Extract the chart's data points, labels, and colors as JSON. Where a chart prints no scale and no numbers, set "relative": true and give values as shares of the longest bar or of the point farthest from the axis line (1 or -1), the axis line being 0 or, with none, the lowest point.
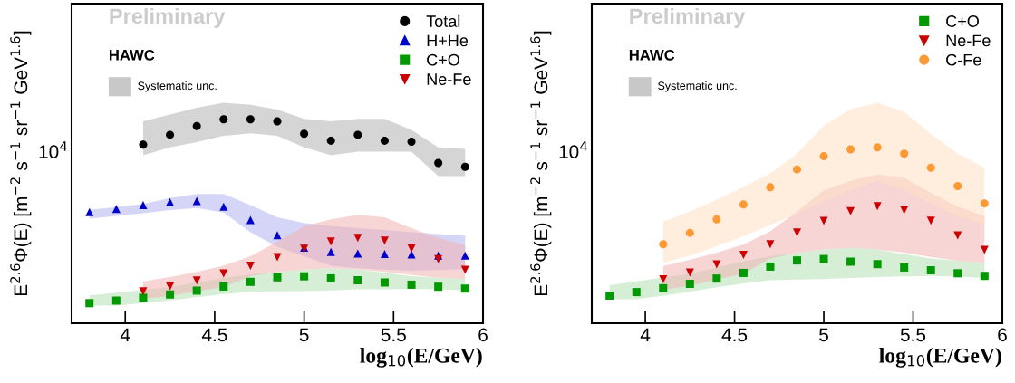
{
  "chart_data": [
    {
      "type": "scatter",
      "relative": true,
      "xlabel": "log$_{10}$(E/GeV)",
      "ylabel": "E$^{2.6}$Φ(E) [m$^{−2}$ s$^{−1}$ sr$^{−1}$ GeV$^{1.6}$]",
      "xlim": [
        3.7,
        6
      ],
      "xticks": [
        4,
        4.5,
        5,
        5.5,
        6
      ],
      "legend": "top right",
      "grid": false,
      "annotations": [
        "Preliminary",
        "HAWC",
        "Systematic unc.",
        "10$^{4}$"
      ],
      "series": [
        {
          "name": "Total",
          "color": "#000000",
          "marker": "circle",
          "x": [
            4.1,
            4.25,
            4.4,
            4.55,
            4.7,
            4.85,
            5.0,
            5.15,
            5.3,
            5.45,
            5.6,
            5.75,
            5.9
          ],
          "values": [
            0.876,
            0.924,
            0.967,
            1,
            1,
            0.99,
            0.929,
            0.895,
            0.924,
            0.895,
            0.89,
            0.786,
            0.767
          ],
          "lower": [
            0.824,
            0.862,
            0.888,
            0.919,
            0.931,
            0.919,
            0.862,
            0.824,
            0.842,
            0.842,
            0.842,
            0.722,
            0.722
          ],
          "upper": [
            0.99,
            1.024,
            1.057,
            1.081,
            1.071,
            1.048,
            1.002,
            0.99,
            1.002,
            1.002,
            0.948,
            0.862,
            0.855
          ]
        },
        {
          "name": "H+He",
          "color": "#0000cc",
          "marker": "triangle",
          "x": [
            3.8,
            3.95,
            4.1,
            4.25,
            4.4,
            4.55,
            4.7,
            4.85,
            5.0,
            5.15,
            5.3,
            5.45,
            5.6,
            5.75,
            5.9
          ],
          "values": [
            0.545,
            0.561,
            0.58,
            0.594,
            0.599,
            0.572,
            0.506,
            0.432,
            0.371,
            0.35,
            0.342,
            0.34,
            0.337,
            0.332,
            0.332
          ],
          "lower": [
            0.513,
            0.526,
            0.539,
            0.555,
            0.565,
            0.543,
            0.446,
            0.375,
            0.329,
            0.282,
            0.27,
            0.263,
            0.258,
            0.261,
            0.267
          ],
          "upper": [
            0.556,
            0.569,
            0.585,
            0.614,
            0.634,
            0.634,
            0.58,
            0.52,
            0.492,
            0.476,
            0.466,
            0.457,
            0.446,
            0.437,
            0.43
          ]
        },
        {
          "name": "C+O",
          "color": "#009900",
          "marker": "square",
          "x": [
            3.8,
            3.95,
            4.1,
            4.25,
            4.4,
            4.55,
            4.7,
            4.85,
            5.0,
            5.15,
            5.3,
            5.45,
            5.6,
            5.75,
            5.9
          ],
          "values": [
            0.0986,
            0.111,
            0.125,
            0.141,
            0.16,
            0.18,
            0.203,
            0.225,
            0.23,
            0.22,
            0.211,
            0.2,
            0.189,
            0.179,
            0.17
          ],
          "lower": [
            0.0862,
            0.0862,
            0.0986,
            0.112,
            0.128,
            0.143,
            0.154,
            0.156,
            0.158,
            0.161,
            0.166,
            0.167,
            0.169,
            0.167,
            0.161
          ],
          "upper": [
            0.136,
            0.15,
            0.163,
            0.178,
            0.199,
            0.222,
            0.24,
            0.252,
            0.264,
            0.27,
            0.264,
            0.247,
            0.231,
            0.223,
            0.217
          ]
        },
        {
          "name": "Ne-Fe",
          "color": "#cc0000",
          "marker": "triangle-down",
          "x": [
            4.1,
            4.25,
            4.4,
            4.55,
            4.7,
            4.85,
            5.0,
            5.15,
            5.3,
            5.45,
            5.6,
            5.75,
            5.9
          ],
          "values": [
            0.157,
            0.181,
            0.21,
            0.244,
            0.282,
            0.324,
            0.365,
            0.401,
            0.418,
            0.405,
            0.367,
            0.314,
            0.262
          ],
          "lower": [
            0.12,
            0.134,
            0.156,
            0.178,
            0.231,
            0.252,
            0.264,
            0.27,
            0.264,
            0.252,
            0.237,
            0.223,
            0.217
          ],
          "upper": [
            0.205,
            0.226,
            0.252,
            0.282,
            0.329,
            0.4,
            0.476,
            0.509,
            0.532,
            0.52,
            0.466,
            0.418,
            0.383
          ]
        }
      ]
    },
    {
      "type": "scatter",
      "relative": true,
      "xlabel": "log$_{10}$(E/GeV)",
      "ylabel": "E$^{2.6}$Φ(E) [m$^{−2}$ s$^{−1}$ sr$^{−1}$ GeV$^{1.6}$]",
      "xlim": [
        3.7,
        6
      ],
      "xticks": [
        4,
        4.5,
        5,
        5.5,
        6
      ],
      "legend": "top right",
      "grid": false,
      "annotations": [
        "Preliminary",
        "HAWC",
        "Systematic unc.",
        "10$^{4}$"
      ],
      "series": [
        {
          "name": "C+O",
          "color": "#009900",
          "marker": "square",
          "x": [
            3.8,
            3.95,
            4.1,
            4.25,
            4.4,
            4.55,
            4.7,
            4.85,
            5.0,
            5.15,
            5.3,
            5.45,
            5.6,
            5.75,
            5.9
          ],
          "values": [
            0.157,
            0.177,
            0.199,
            0.224,
            0.254,
            0.286,
            0.322,
            0.357,
            0.365,
            0.35,
            0.336,
            0.317,
            0.301,
            0.284,
            0.269
          ],
          "lower": [
            0.137,
            0.137,
            0.157,
            0.179,
            0.204,
            0.227,
            0.245,
            0.248,
            0.251,
            0.257,
            0.263,
            0.266,
            0.269,
            0.265,
            0.257
          ],
          "upper": [
            0.216,
            0.238,
            0.26,
            0.282,
            0.316,
            0.353,
            0.381,
            0.401,
            0.419,
            0.429,
            0.419,
            0.393,
            0.368,
            0.355,
            0.344
          ]
        },
        {
          "name": "Ne-Fe",
          "color": "#cc0000",
          "marker": "triangle-down",
          "x": [
            4.1,
            4.25,
            4.4,
            4.55,
            4.7,
            4.85,
            5.0,
            5.15,
            5.3,
            5.45,
            5.6,
            5.75,
            5.9
          ],
          "values": [
            0.25,
            0.288,
            0.335,
            0.388,
            0.449,
            0.516,
            0.581,
            0.637,
            0.665,
            0.643,
            0.583,
            0.499,
            0.417
          ],
          "lower": [
            0.191,
            0.213,
            0.248,
            0.282,
            0.368,
            0.401,
            0.419,
            0.429,
            0.419,
            0.401,
            0.376,
            0.355,
            0.344
          ],
          "upper": [
            0.326,
            0.36,
            0.401,
            0.448,
            0.522,
            0.635,
            0.757,
            0.809,
            0.846,
            0.827,
            0.741,
            0.664,
            0.609
          ]
        },
        {
          "name": "C-Fe",
          "color": "#ff9933",
          "marker": "circle",
          "x": [
            4.1,
            4.25,
            4.4,
            4.55,
            4.7,
            4.85,
            5.0,
            5.15,
            5.3,
            5.45,
            5.6,
            5.75,
            5.9
          ],
          "values": [
            0.449,
            0.514,
            0.59,
            0.675,
            0.773,
            0.874,
            0.949,
            0.988,
            1,
            0.964,
            0.884,
            0.78,
            0.681
          ],
          "lower": [
            0.344,
            0.385,
            0.438,
            0.495,
            0.558,
            0.622,
            0.694,
            0.757,
            0.809,
            0.757,
            0.679,
            0.609,
            0.558
          ],
          "upper": [
            0.578,
            0.635,
            0.703,
            0.774,
            0.852,
            0.964,
            1.123,
            1.217,
            1.253,
            1.202,
            1.076,
            0.964,
            0.884
          ]
        }
      ]
    }
  ]
}
